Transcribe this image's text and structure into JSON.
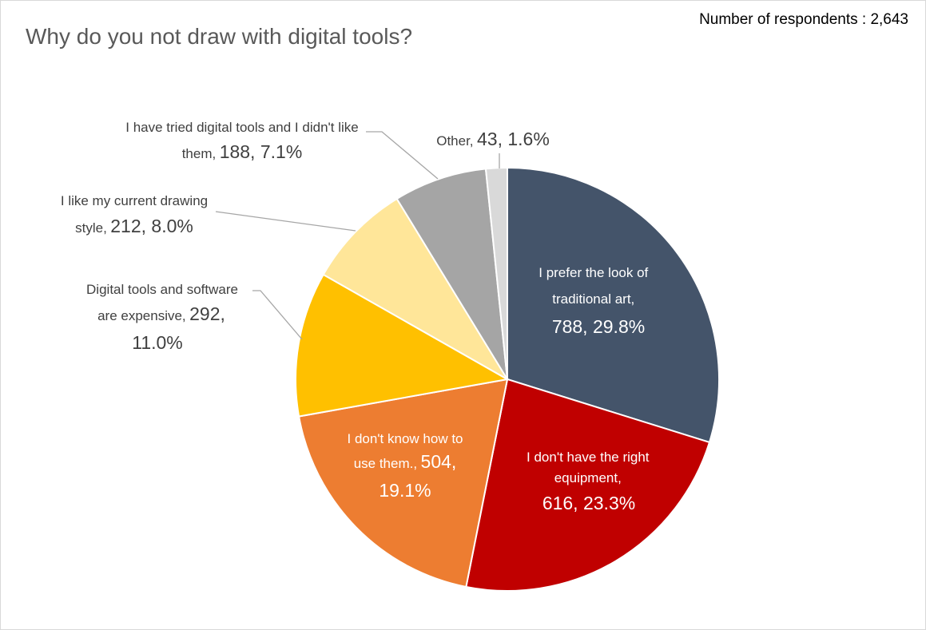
{
  "chart_data": {
    "type": "pie",
    "title": "Why do you not draw with digital tools?",
    "note": "Number of respondents : 2,643",
    "slices": [
      {
        "label": "I prefer the look of traditional art",
        "value": 788,
        "percent": "29.8%",
        "color": "#44546a"
      },
      {
        "label": "I don't have the right equipment",
        "value": 616,
        "percent": "23.3%",
        "color": "#c00000"
      },
      {
        "label": "I don't know how to use them.",
        "value": 504,
        "percent": "19.1%",
        "color": "#ed7d31"
      },
      {
        "label": "Digital tools and software are expensive",
        "value": 292,
        "percent": "11.0%",
        "color": "#ffc000"
      },
      {
        "label": "I like my current drawing style",
        "value": 212,
        "percent": "8.0%",
        "color": "#ffe699"
      },
      {
        "label": "I have tried digital tools and I didn't like them",
        "value": 188,
        "percent": "7.1%",
        "color": "#a5a5a5"
      },
      {
        "label": "Other",
        "value": 43,
        "percent": "1.6%",
        "color": "#d9d9d9"
      }
    ]
  },
  "labels": {
    "s0": {
      "l1": "I prefer the look of",
      "l2": "traditional art,",
      "l3": "788, 29.8%"
    },
    "s1": {
      "l1": "I don't have the right",
      "l2": "equipment,",
      "l3": "616, 23.3%"
    },
    "s2": {
      "l1": "I don't know how to",
      "l2a": "use them.,",
      "l2b": "504,",
      "l3": "19.1%"
    },
    "s3": {
      "l1": "Digital tools and software",
      "l2a": "are expensive,",
      "l2b": "292,",
      "l3": "11.0%"
    },
    "s4": {
      "l1": "I like my current drawing",
      "l2a": "style,",
      "l2b": "212, 8.0%"
    },
    "s5": {
      "l1": "I have tried digital tools and I didn't like",
      "l2a": "them,",
      "l2b": "188, 7.1%"
    },
    "s6": {
      "l1a": "Other,",
      "l1b": "43, 1.6%"
    }
  }
}
